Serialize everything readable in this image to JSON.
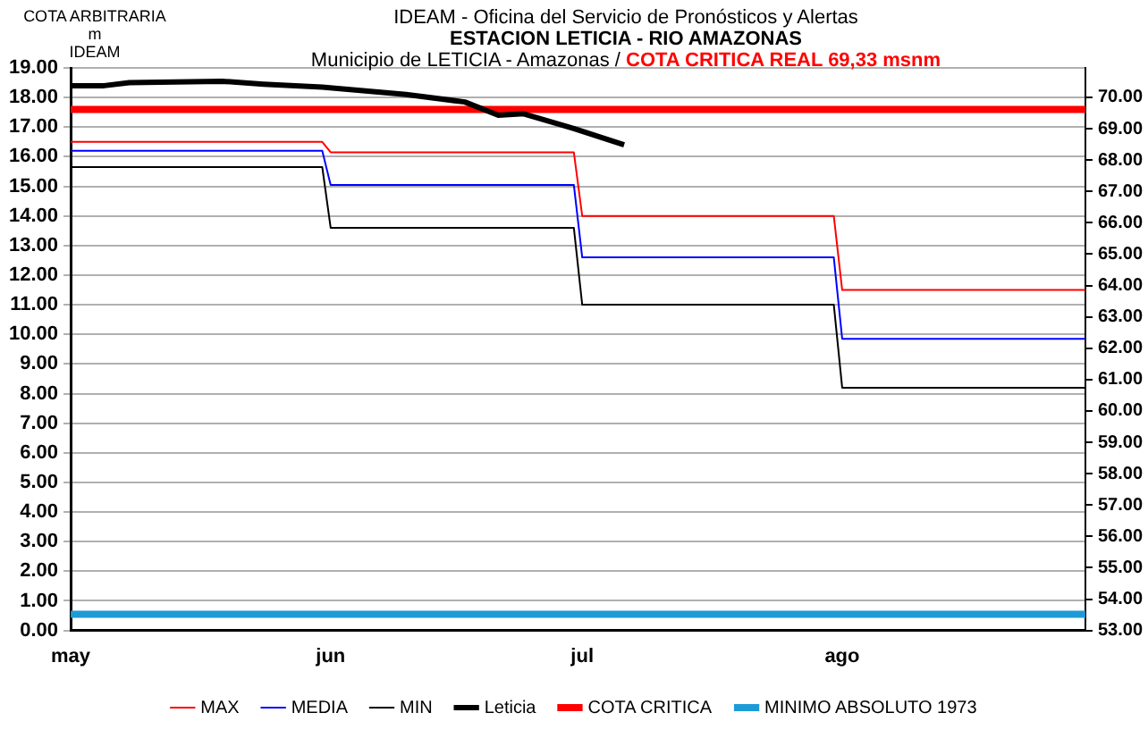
{
  "chart_data": {
    "type": "line",
    "title": "IDEAM - Oficina del Servicio de Pronósticos y Alertas",
    "subtitle": "ESTACION LETICIA - RIO AMAZONAS",
    "ylabel": "COTA ARBITRARIA\nm\nIDEAM",
    "annotations": [
      "Municipio de LETICIA - Amazonas  / ",
      "COTA CRITICA REAL 69,33 msnm"
    ],
    "xlim": [
      "--05-01",
      "--08-30"
    ],
    "xticks": [
      {
        "value": "--05-01",
        "label": "may"
      },
      {
        "value": "--06-01",
        "label": "jun"
      },
      {
        "value": "--07-01",
        "label": "jul"
      },
      {
        "value": "--08-01",
        "label": "ago"
      }
    ],
    "ylim": [
      0,
      19
    ],
    "yticks": [
      {
        "value": 0,
        "label": "0.00"
      },
      {
        "value": 1,
        "label": "1.00"
      },
      {
        "value": 2,
        "label": "2.00"
      },
      {
        "value": 3,
        "label": "3.00"
      },
      {
        "value": 4,
        "label": "4.00"
      },
      {
        "value": 5,
        "label": "5.00"
      },
      {
        "value": 6,
        "label": "6.00"
      },
      {
        "value": 7,
        "label": "7.00"
      },
      {
        "value": 8,
        "label": "8.00"
      },
      {
        "value": 9,
        "label": "9.00"
      },
      {
        "value": 10,
        "label": "10.00"
      },
      {
        "value": 11,
        "label": "11.00"
      },
      {
        "value": 12,
        "label": "12.00"
      },
      {
        "value": 13,
        "label": "13.00"
      },
      {
        "value": 14,
        "label": "14.00"
      },
      {
        "value": 15,
        "label": "15.00"
      },
      {
        "value": 16,
        "label": "16.00"
      },
      {
        "value": 17,
        "label": "17.00"
      },
      {
        "value": 18,
        "label": "18.00"
      },
      {
        "value": 19,
        "label": "19.00"
      }
    ],
    "y2lim": [
      53,
      70.94
    ],
    "y2ticks": [
      {
        "value": 53,
        "label": "53.00"
      },
      {
        "value": 54,
        "label": "54.00"
      },
      {
        "value": 55,
        "label": "55.00"
      },
      {
        "value": 56,
        "label": "56.00"
      },
      {
        "value": 57,
        "label": "57.00"
      },
      {
        "value": 58,
        "label": "58.00"
      },
      {
        "value": 59,
        "label": "59.00"
      },
      {
        "value": 60,
        "label": "60.00"
      },
      {
        "value": 61,
        "label": "61.00"
      },
      {
        "value": 62,
        "label": "62.00"
      },
      {
        "value": 63,
        "label": "63.00"
      },
      {
        "value": 64,
        "label": "64.00"
      },
      {
        "value": 65,
        "label": "65.00"
      },
      {
        "value": 66,
        "label": "66.00"
      },
      {
        "value": 67,
        "label": "67.00"
      },
      {
        "value": 68,
        "label": "68.00"
      },
      {
        "value": 69,
        "label": "69.00"
      },
      {
        "value": 70,
        "label": "70.00"
      }
    ],
    "grid": "y",
    "legend": "bottom",
    "marker": "none",
    "series": [
      {
        "name": "MAX",
        "color": "#ff0000",
        "x": [
          "--05-01",
          "--05-31",
          "--06-01",
          "--06-30",
          "--07-01",
          "--07-31",
          "--08-01",
          "--08-30"
        ],
        "values": [
          16.5,
          16.5,
          16.15,
          16.15,
          14.0,
          14.0,
          11.5,
          11.5
        ]
      },
      {
        "name": "MEDIA",
        "color": "#0000ff",
        "x": [
          "--05-01",
          "--05-31",
          "--06-01",
          "--06-30",
          "--07-01",
          "--07-31",
          "--08-01",
          "--08-30"
        ],
        "values": [
          16.2,
          16.2,
          15.05,
          15.05,
          12.6,
          12.6,
          9.85,
          9.85
        ]
      },
      {
        "name": "MIN",
        "color": "#000000",
        "x": [
          "--05-01",
          "--05-31",
          "--06-01",
          "--06-30",
          "--07-01",
          "--07-31",
          "--08-01",
          "--08-30"
        ],
        "values": [
          15.65,
          15.65,
          13.6,
          13.6,
          11.0,
          11.0,
          8.2,
          8.2
        ]
      },
      {
        "name": "Leticia",
        "color": "#000000",
        "x": [
          "--05-01",
          "--05-05",
          "--05-08",
          "--05-19",
          "--05-24",
          "--05-31",
          "--06-10",
          "--06-17",
          "--06-21",
          "--06-24",
          "--06-30",
          "--07-06"
        ],
        "values": [
          18.4,
          18.4,
          18.5,
          18.55,
          18.45,
          18.35,
          18.1,
          17.85,
          17.4,
          17.45,
          16.95,
          16.4
        ]
      },
      {
        "name": "COTA CRITICA",
        "color": "#ff0000",
        "x": [
          "--05-01",
          "--08-30"
        ],
        "values": [
          17.6,
          17.6
        ]
      },
      {
        "name": "MINIMO ABSOLUTO 1973",
        "color": "#1e9bd7",
        "x": [
          "--05-01",
          "--08-30"
        ],
        "values": [
          0.55,
          0.55
        ]
      }
    ]
  }
}
